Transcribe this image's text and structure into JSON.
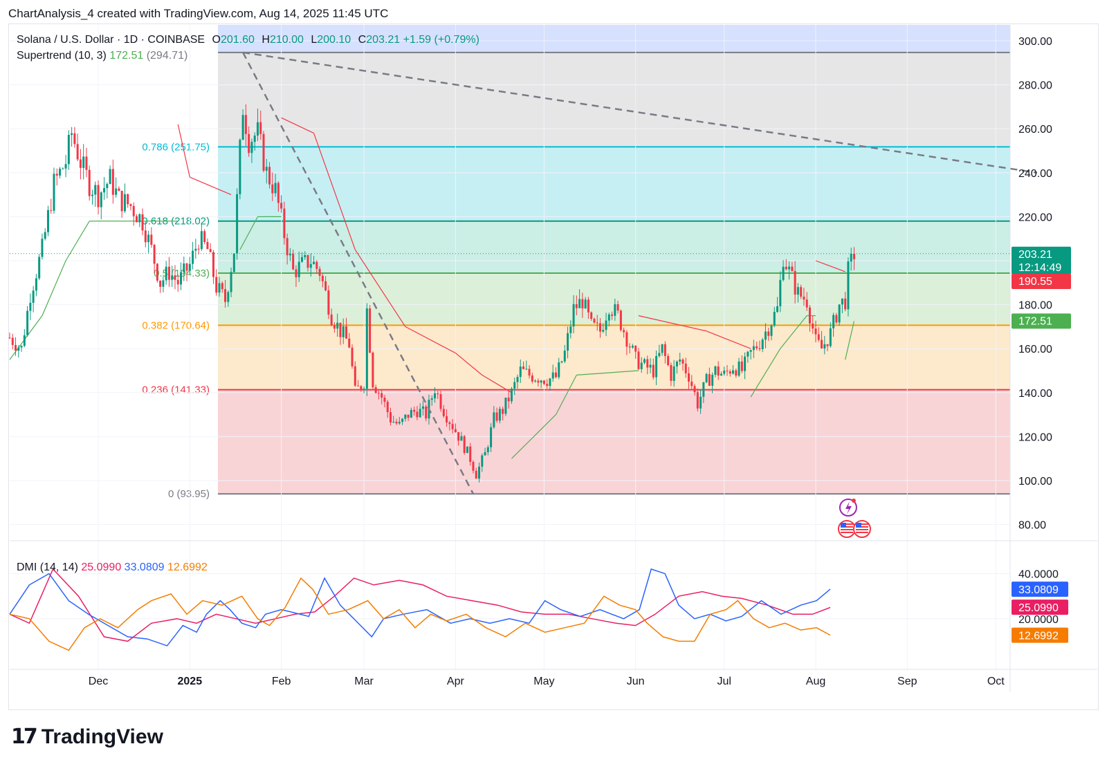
{
  "header": {
    "text": "ChartAnalysis_4 created with TradingView.com, Aug 14, 2025 11:45 UTC"
  },
  "legend": {
    "symbol": "Solana / U.S. Dollar · 1D · COINBASE",
    "open_label": "O",
    "open": "201.60",
    "high_label": "H",
    "high": "210.00",
    "low_label": "L",
    "low": "200.10",
    "close_label": "C",
    "close": "203.21",
    "change": "+1.59 (+0.79%)",
    "supertrend_label": "Supertrend (10, 3)",
    "supertrend_value": "172.51",
    "supertrend_extra": "(294.71)"
  },
  "dmi_legend": {
    "label": "DMI (14, 14)",
    "adx": "25.0990",
    "plus_di": "33.0809",
    "minus_di": "12.6992"
  },
  "brand": {
    "logo_text": "17",
    "name": "TradingView"
  },
  "colors": {
    "up": "#089981",
    "down": "#f23645",
    "st_up": "#4caf50",
    "st_down": "#f23645",
    "adx": "#e91e63",
    "plus_di": "#2962ff",
    "minus_di": "#f57c00"
  },
  "chart_data": [
    {
      "type": "candlestick",
      "title": "Solana / U.S. Dollar · 1D · COINBASE",
      "x_ticks": [
        "Dec",
        "2025",
        "Feb",
        "Mar",
        "Apr",
        "May",
        "Jun",
        "Jul",
        "Aug",
        "Sep",
        "Oct"
      ],
      "y_ticks": [
        "300.00",
        "280.00",
        "260.00",
        "240.00",
        "220.00",
        "200.00",
        "180.00",
        "160.00",
        "140.00",
        "120.00",
        "100.00",
        "80.00"
      ],
      "ylim": [
        80,
        304
      ],
      "price_labels": [
        {
          "value": "203.21",
          "sub": "12:14:49",
          "color": "#089981"
        },
        {
          "value": "190.55",
          "sub": "",
          "color": "#f23645"
        },
        {
          "value": "172.51",
          "sub": "",
          "color": "#4caf50"
        }
      ],
      "fib_levels": [
        {
          "ratio": "0.786",
          "price": 251.75,
          "label": "0.786 (251.75)",
          "color": "#00bcd4",
          "fill": "#c6eff4"
        },
        {
          "ratio": "0.618",
          "price": 218.02,
          "label": "0.618 (218.02)",
          "color": "#089981",
          "fill": "#cbeee5"
        },
        {
          "ratio": "0.5",
          "price": 194.33,
          "label": "0.5 (194.33)",
          "color": "#4caf50",
          "fill": "#dcefd9"
        },
        {
          "ratio": "0.382",
          "price": 170.64,
          "label": "0.382 (170.64)",
          "color": "#ff9800",
          "fill": "#fde9cc"
        },
        {
          "ratio": "0.236",
          "price": 141.33,
          "label": "0.236 (141.33)",
          "color": "#f23645",
          "fill": "#f9d4d6"
        },
        {
          "ratio": "0",
          "price": 93.95,
          "label": "0 (93.95)",
          "color": "#787b86",
          "fill": "#f9d4d6"
        }
      ],
      "fib_top": {
        "price": 294.71,
        "label": "(294.71)"
      },
      "trendlines": [
        {
          "from": [
            "2025-01-19",
            294.7
          ],
          "to": [
            "2025-10-15",
            240
          ]
        },
        {
          "from": [
            "2025-01-19",
            294.7
          ],
          "to": [
            "2025-04-07",
            93.95
          ]
        }
      ],
      "close_series": [
        [
          "2024-11-01",
          165
        ],
        [
          "2024-11-05",
          160
        ],
        [
          "2024-11-08",
          185
        ],
        [
          "2024-11-12",
          205
        ],
        [
          "2024-11-16",
          235
        ],
        [
          "2024-11-20",
          245
        ],
        [
          "2024-11-22",
          258
        ],
        [
          "2024-11-25",
          245
        ],
        [
          "2024-11-28",
          235
        ],
        [
          "2024-12-01",
          230
        ],
        [
          "2024-12-05",
          237
        ],
        [
          "2024-12-08",
          228
        ],
        [
          "2024-12-12",
          225
        ],
        [
          "2024-12-16",
          218
        ],
        [
          "2024-12-19",
          205
        ],
        [
          "2024-12-22",
          190
        ],
        [
          "2024-12-25",
          195
        ],
        [
          "2024-12-28",
          190
        ],
        [
          "2025-01-01",
          198
        ],
        [
          "2025-01-04",
          210
        ],
        [
          "2025-01-07",
          205
        ],
        [
          "2025-01-10",
          188
        ],
        [
          "2025-01-13",
          182
        ],
        [
          "2025-01-16",
          205
        ],
        [
          "2025-01-18",
          250
        ],
        [
          "2025-01-19",
          270
        ],
        [
          "2025-01-21",
          255
        ],
        [
          "2025-01-24",
          258
        ],
        [
          "2025-01-27",
          240
        ],
        [
          "2025-01-30",
          232
        ],
        [
          "2025-02-02",
          212
        ],
        [
          "2025-02-05",
          195
        ],
        [
          "2025-02-08",
          198
        ],
        [
          "2025-02-11",
          200
        ],
        [
          "2025-02-14",
          195
        ],
        [
          "2025-02-18",
          175
        ],
        [
          "2025-02-21",
          168
        ],
        [
          "2025-02-24",
          162
        ],
        [
          "2025-02-26",
          140
        ],
        [
          "2025-03-01",
          145
        ],
        [
          "2025-03-02",
          178
        ],
        [
          "2025-03-04",
          145
        ],
        [
          "2025-03-07",
          138
        ],
        [
          "2025-03-10",
          128
        ],
        [
          "2025-03-13",
          125
        ],
        [
          "2025-03-16",
          130
        ],
        [
          "2025-03-19",
          132
        ],
        [
          "2025-03-22",
          130
        ],
        [
          "2025-03-25",
          142
        ],
        [
          "2025-03-28",
          132
        ],
        [
          "2025-03-31",
          125
        ],
        [
          "2025-04-03",
          118
        ],
        [
          "2025-04-06",
          110
        ],
        [
          "2025-04-08",
          103
        ],
        [
          "2025-04-11",
          112
        ],
        [
          "2025-04-14",
          128
        ],
        [
          "2025-04-17",
          132
        ],
        [
          "2025-04-20",
          140
        ],
        [
          "2025-04-23",
          150
        ],
        [
          "2025-04-26",
          148
        ],
        [
          "2025-04-29",
          147
        ],
        [
          "2025-05-02",
          146
        ],
        [
          "2025-05-05",
          147
        ],
        [
          "2025-05-08",
          158
        ],
        [
          "2025-05-11",
          178
        ],
        [
          "2025-05-14",
          182
        ],
        [
          "2025-05-17",
          170
        ],
        [
          "2025-05-20",
          168
        ],
        [
          "2025-05-23",
          180
        ],
        [
          "2025-05-26",
          175
        ],
        [
          "2025-05-29",
          165
        ],
        [
          "2025-06-01",
          155
        ],
        [
          "2025-06-04",
          152
        ],
        [
          "2025-06-07",
          150
        ],
        [
          "2025-06-10",
          160
        ],
        [
          "2025-06-13",
          148
        ],
        [
          "2025-06-16",
          155
        ],
        [
          "2025-06-19",
          148
        ],
        [
          "2025-06-22",
          135
        ],
        [
          "2025-06-25",
          145
        ],
        [
          "2025-06-28",
          150
        ],
        [
          "2025-07-01",
          148
        ],
        [
          "2025-07-04",
          152
        ],
        [
          "2025-07-07",
          150
        ],
        [
          "2025-07-10",
          158
        ],
        [
          "2025-07-13",
          163
        ],
        [
          "2025-07-16",
          170
        ],
        [
          "2025-07-19",
          178
        ],
        [
          "2025-07-21",
          202
        ],
        [
          "2025-07-23",
          195
        ],
        [
          "2025-07-26",
          185
        ],
        [
          "2025-07-29",
          182
        ],
        [
          "2025-08-01",
          163
        ],
        [
          "2025-08-03",
          160
        ],
        [
          "2025-08-06",
          167
        ],
        [
          "2025-08-09",
          180
        ],
        [
          "2025-08-11",
          182
        ],
        [
          "2025-08-12",
          195
        ],
        [
          "2025-08-14",
          203.21
        ]
      ]
    },
    {
      "type": "line",
      "title": "DMI (14, 14)",
      "y_ticks": [
        "40.0000",
        "20.0000"
      ],
      "ylim": [
        0,
        46
      ],
      "value_labels": [
        {
          "value": "33.0809",
          "color": "#2962ff"
        },
        {
          "value": "25.0990",
          "color": "#e91e63"
        },
        {
          "value": "12.6992",
          "color": "#f57c00"
        }
      ],
      "series": [
        {
          "values": [
            [
              0,
              22
            ],
            [
              10,
              18
            ],
            [
              22,
              42
            ],
            [
              35,
              30
            ],
            [
              48,
              12
            ],
            [
              60,
              10
            ],
            [
              72,
              18
            ],
            [
              85,
              20
            ],
            [
              95,
              18
            ],
            [
              105,
              22
            ],
            [
              115,
              20
            ],
            [
              125,
              18
            ],
            [
              135,
              20
            ],
            [
              145,
              22
            ],
            [
              155,
              23
            ],
            [
              165,
              30
            ],
            [
              175,
              38
            ],
            [
              185,
              35
            ],
            [
              198,
              37
            ],
            [
              210,
              35
            ],
            [
              222,
              30
            ],
            [
              235,
              28
            ],
            [
              248,
              26
            ],
            [
              260,
              23
            ],
            [
              272,
              22
            ],
            [
              284,
              22
            ],
            [
              296,
              20
            ],
            [
              308,
              18
            ],
            [
              318,
              17
            ],
            [
              328,
              22
            ],
            [
              340,
              30
            ],
            [
              352,
              32
            ],
            [
              362,
              30
            ],
            [
              372,
              29
            ],
            [
              385,
              26
            ],
            [
              398,
              22
            ],
            [
              408,
              22
            ],
            [
              417,
              25
            ]
          ]
        },
        {
          "values": [
            [
              0,
              22
            ],
            [
              10,
              35
            ],
            [
              20,
              40
            ],
            [
              30,
              28
            ],
            [
              40,
              22
            ],
            [
              50,
              17
            ],
            [
              60,
              12
            ],
            [
              70,
              11
            ],
            [
              80,
              8
            ],
            [
              88,
              17
            ],
            [
              95,
              14
            ],
            [
              100,
              22
            ],
            [
              107,
              28
            ],
            [
              112,
              24
            ],
            [
              118,
              18
            ],
            [
              125,
              16
            ],
            [
              130,
              22
            ],
            [
              138,
              24
            ],
            [
              143,
              23
            ],
            [
              152,
              21
            ],
            [
              160,
              38
            ],
            [
              168,
              26
            ],
            [
              176,
              19
            ],
            [
              184,
              12
            ],
            [
              190,
              20
            ],
            [
              200,
              22
            ],
            [
              212,
              24
            ],
            [
              224,
              18
            ],
            [
              234,
              20
            ],
            [
              244,
              18
            ],
            [
              254,
              20
            ],
            [
              264,
              18
            ],
            [
              272,
              28
            ],
            [
              280,
              24
            ],
            [
              290,
              21
            ],
            [
              300,
              24
            ],
            [
              306,
              22
            ],
            [
              312,
              20
            ],
            [
              320,
              24
            ],
            [
              326,
              42
            ],
            [
              333,
              40
            ],
            [
              340,
              26
            ],
            [
              348,
              20
            ],
            [
              356,
              22
            ],
            [
              364,
              19
            ],
            [
              372,
              21
            ],
            [
              382,
              28
            ],
            [
              392,
              22
            ],
            [
              402,
              26
            ],
            [
              410,
              28
            ],
            [
              417,
              33.08
            ]
          ]
        },
        {
          "values": [
            [
              0,
              22
            ],
            [
              10,
              20
            ],
            [
              20,
              10
            ],
            [
              30,
              6
            ],
            [
              38,
              16
            ],
            [
              46,
              20
            ],
            [
              55,
              16
            ],
            [
              65,
              24
            ],
            [
              72,
              28
            ],
            [
              82,
              31
            ],
            [
              90,
              22
            ],
            [
              98,
              28
            ],
            [
              108,
              26
            ],
            [
              118,
              30
            ],
            [
              126,
              20
            ],
            [
              132,
              17
            ],
            [
              140,
              25
            ],
            [
              148,
              38
            ],
            [
              154,
              33
            ],
            [
              162,
              22
            ],
            [
              172,
              24
            ],
            [
              182,
              28
            ],
            [
              190,
              20
            ],
            [
              198,
              24
            ],
            [
              206,
              16
            ],
            [
              214,
              22
            ],
            [
              222,
              19
            ],
            [
              232,
              22
            ],
            [
              242,
              16
            ],
            [
              252,
              12
            ],
            [
              262,
              18
            ],
            [
              272,
              14
            ],
            [
              282,
              16
            ],
            [
              292,
              18
            ],
            [
              302,
              30
            ],
            [
              310,
              26
            ],
            [
              318,
              24
            ],
            [
              324,
              18
            ],
            [
              332,
              12
            ],
            [
              340,
              10
            ],
            [
              348,
              10
            ],
            [
              356,
              22
            ],
            [
              364,
              24
            ],
            [
              370,
              28
            ],
            [
              378,
              20
            ],
            [
              386,
              16
            ],
            [
              394,
              18
            ],
            [
              402,
              15
            ],
            [
              410,
              16
            ],
            [
              417,
              12.7
            ]
          ]
        }
      ]
    }
  ]
}
